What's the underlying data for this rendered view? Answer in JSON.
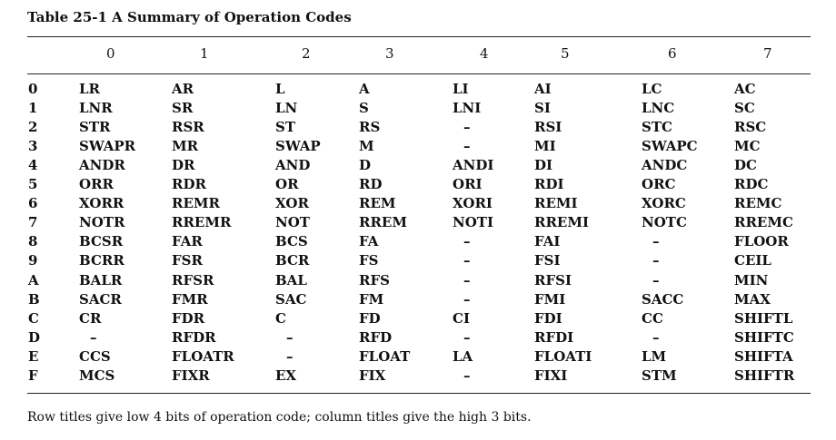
{
  "caption": "Table 25-1  A Summary of Operation Codes",
  "column_headers": [
    "0",
    "1",
    "2",
    "3",
    "4",
    "5",
    "6",
    "7"
  ],
  "rows": [
    {
      "label": "0",
      "cells": [
        "LR",
        "AR",
        "L",
        "A",
        "LI",
        "AI",
        "LC",
        "AC"
      ]
    },
    {
      "label": "1",
      "cells": [
        "LNR",
        "SR",
        "LN",
        "S",
        "LNI",
        "SI",
        "LNC",
        "SC"
      ]
    },
    {
      "label": "2",
      "cells": [
        "STR",
        "RSR",
        "ST",
        "RS",
        "–",
        "RSI",
        "STC",
        "RSC"
      ]
    },
    {
      "label": "3",
      "cells": [
        "SWAPR",
        "MR",
        "SWAP",
        "M",
        "–",
        "MI",
        "SWAPC",
        "MC"
      ]
    },
    {
      "label": "4",
      "cells": [
        "ANDR",
        "DR",
        "AND",
        "D",
        "ANDI",
        "DI",
        "ANDC",
        "DC"
      ]
    },
    {
      "label": "5",
      "cells": [
        "ORR",
        "RDR",
        "OR",
        "RD",
        "ORI",
        "RDI",
        "ORC",
        "RDC"
      ]
    },
    {
      "label": "6",
      "cells": [
        "XORR",
        "REMR",
        "XOR",
        "REM",
        "XORI",
        "REMI",
        "XORC",
        "REMC"
      ]
    },
    {
      "label": "7",
      "cells": [
        "NOTR",
        "RREMR",
        "NOT",
        "RREM",
        "NOTI",
        "RREMI",
        "NOTC",
        "RREMC"
      ]
    },
    {
      "label": "8",
      "cells": [
        "BCSR",
        "FAR",
        "BCS",
        "FA",
        "–",
        "FAI",
        "–",
        "FLOOR"
      ]
    },
    {
      "label": "9",
      "cells": [
        "BCRR",
        "FSR",
        "BCR",
        "FS",
        "–",
        "FSI",
        "–",
        "CEIL"
      ]
    },
    {
      "label": "A",
      "cells": [
        "BALR",
        "RFSR",
        "BAL",
        "RFS",
        "–",
        "RFSI",
        "–",
        "MIN"
      ]
    },
    {
      "label": "B",
      "cells": [
        "SACR",
        "FMR",
        "SAC",
        "FM",
        "–",
        "FMI",
        "SACC",
        "MAX"
      ]
    },
    {
      "label": "C",
      "cells": [
        "CR",
        "FDR",
        "C",
        "FD",
        "CI",
        "FDI",
        "CC",
        "SHIFTL"
      ]
    },
    {
      "label": "D",
      "cells": [
        "–",
        "RFDR",
        "–",
        "RFD",
        "–",
        "RFDI",
        "–",
        "SHIFTC"
      ]
    },
    {
      "label": "E",
      "cells": [
        "CCS",
        "FLOATR",
        "–",
        "FLOAT",
        "LA",
        "FLOATI",
        "LM",
        "SHIFTA"
      ]
    },
    {
      "label": "F",
      "cells": [
        "MCS",
        "FIXR",
        "EX",
        "FIX",
        "–",
        "FIXI",
        "STM",
        "SHIFTR"
      ]
    }
  ],
  "footnote": "Row titles give low 4 bits of operation code; column titles give the high 3 bits."
}
